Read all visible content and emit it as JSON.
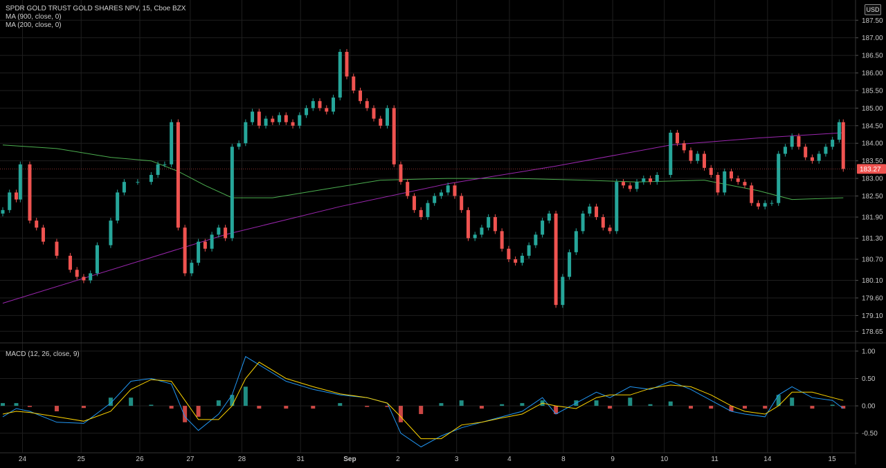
{
  "header": {
    "instrument": "SPDR GOLD TRUST GOLD SHARES NPV, 15, Cboe BZX",
    "indicator_ma900": "MA (900, close, 0)",
    "indicator_ma200": "MA (200, close, 0)",
    "indicator_macd": "MACD (12, 26, close, 9)",
    "currency": "USD"
  },
  "colors": {
    "background": "#000000",
    "grid": "#1f1f1f",
    "up": "#26a69a",
    "down": "#ef5350",
    "ma900": "#9c27b0",
    "ma200": "#4caf50",
    "macd_line": "#2196f3",
    "signal_line": "#ffd600",
    "hist_pos": "#26a69a",
    "hist_neg": "#ef5350",
    "axis_text": "#c8c8c8",
    "price_tag": "#ef5350"
  },
  "chart_data": {
    "type": "candlestick",
    "price_axis": {
      "ticks": [
        "187.50",
        "187.00",
        "186.50",
        "186.00",
        "185.50",
        "185.00",
        "184.50",
        "184.00",
        "183.50",
        "183.00",
        "182.50",
        "181.90",
        "181.30",
        "180.70",
        "180.10",
        "179.60",
        "179.10",
        "178.65"
      ],
      "last_price": "183.27",
      "ylim": [
        178.4,
        187.8
      ]
    },
    "macd_axis": {
      "ticks": [
        "1.00",
        "0.50",
        "0.00",
        "-0.50"
      ],
      "ylim": [
        -0.82,
        1.1
      ]
    },
    "x_ticks": [
      "24",
      "25",
      "26",
      "27",
      "28",
      "31",
      "Sep",
      "2",
      "3",
      "4",
      "8",
      "9",
      "10",
      "11",
      "14",
      "15"
    ],
    "price_series": [
      {
        "x": 0,
        "close": 182.1
      },
      {
        "x": 0.5,
        "close": 182.6
      },
      {
        "x": 1.0,
        "close": 182.4
      },
      {
        "x": 1.3,
        "close": 183.4
      },
      {
        "x": 2.0,
        "close": 181.8
      },
      {
        "x": 2.5,
        "close": 181.6
      },
      {
        "x": 3.0,
        "close": 181.2
      },
      {
        "x": 4.0,
        "close": 180.8
      },
      {
        "x": 5.0,
        "close": 180.4
      },
      {
        "x": 5.5,
        "close": 180.2
      },
      {
        "x": 6.0,
        "close": 180.1
      },
      {
        "x": 6.5,
        "close": 180.3
      },
      {
        "x": 7.0,
        "close": 181.1
      },
      {
        "x": 8.0,
        "close": 181.8
      },
      {
        "x": 8.5,
        "close": 182.6
      },
      {
        "x": 9.0,
        "close": 182.9
      },
      {
        "x": 10.0,
        "close": 182.9
      },
      {
        "x": 11.0,
        "close": 183.1
      },
      {
        "x": 11.5,
        "close": 183.4
      },
      {
        "x": 12.0,
        "close": 183.4
      },
      {
        "x": 12.5,
        "close": 184.6
      },
      {
        "x": 13.0,
        "close": 181.6
      },
      {
        "x": 13.5,
        "close": 180.3
      },
      {
        "x": 14.0,
        "close": 180.6
      },
      {
        "x": 14.5,
        "close": 181.2
      },
      {
        "x": 15.0,
        "close": 181.0
      },
      {
        "x": 15.5,
        "close": 181.4
      },
      {
        "x": 16.0,
        "close": 181.6
      },
      {
        "x": 16.5,
        "close": 181.3
      },
      {
        "x": 17.0,
        "close": 183.9
      },
      {
        "x": 17.5,
        "close": 184.0
      },
      {
        "x": 18.0,
        "close": 184.6
      },
      {
        "x": 18.5,
        "close": 184.9
      },
      {
        "x": 19.0,
        "close": 184.5
      },
      {
        "x": 19.5,
        "close": 184.7
      },
      {
        "x": 20.0,
        "close": 184.6
      },
      {
        "x": 20.5,
        "close": 184.8
      },
      {
        "x": 21.0,
        "close": 184.6
      },
      {
        "x": 21.5,
        "close": 184.5
      },
      {
        "x": 22.0,
        "close": 184.8
      },
      {
        "x": 22.5,
        "close": 185.0
      },
      {
        "x": 23.0,
        "close": 185.2
      },
      {
        "x": 23.5,
        "close": 185.0
      },
      {
        "x": 24.0,
        "close": 184.9
      },
      {
        "x": 24.5,
        "close": 185.3
      },
      {
        "x": 25.0,
        "close": 186.6
      },
      {
        "x": 25.5,
        "close": 185.9
      },
      {
        "x": 26.0,
        "close": 185.5
      },
      {
        "x": 26.5,
        "close": 185.2
      },
      {
        "x": 27.0,
        "close": 185.0
      },
      {
        "x": 27.5,
        "close": 184.7
      },
      {
        "x": 28.0,
        "close": 184.5
      },
      {
        "x": 28.5,
        "close": 185.0
      },
      {
        "x": 29.0,
        "close": 183.4
      },
      {
        "x": 29.5,
        "close": 182.9
      },
      {
        "x": 30.0,
        "close": 182.5
      },
      {
        "x": 30.5,
        "close": 182.1
      },
      {
        "x": 31.0,
        "close": 181.9
      },
      {
        "x": 31.5,
        "close": 182.3
      },
      {
        "x": 32.0,
        "close": 182.5
      },
      {
        "x": 32.5,
        "close": 182.6
      },
      {
        "x": 33.0,
        "close": 182.8
      },
      {
        "x": 33.5,
        "close": 182.5
      },
      {
        "x": 34.0,
        "close": 182.1
      },
      {
        "x": 34.5,
        "close": 181.3
      },
      {
        "x": 35.0,
        "close": 181.4
      },
      {
        "x": 35.5,
        "close": 181.6
      },
      {
        "x": 36.0,
        "close": 181.9
      },
      {
        "x": 36.5,
        "close": 181.5
      },
      {
        "x": 37.0,
        "close": 181.0
      },
      {
        "x": 37.5,
        "close": 180.7
      },
      {
        "x": 38.0,
        "close": 180.6
      },
      {
        "x": 38.5,
        "close": 180.8
      },
      {
        "x": 39.0,
        "close": 181.1
      },
      {
        "x": 39.5,
        "close": 181.4
      },
      {
        "x": 40.0,
        "close": 181.8
      },
      {
        "x": 40.5,
        "close": 182.0
      },
      {
        "x": 41.0,
        "close": 179.4
      },
      {
        "x": 41.5,
        "close": 180.2
      },
      {
        "x": 42.0,
        "close": 180.9
      },
      {
        "x": 42.5,
        "close": 181.5
      },
      {
        "x": 43.0,
        "close": 182.0
      },
      {
        "x": 43.5,
        "close": 182.2
      },
      {
        "x": 44.0,
        "close": 181.9
      },
      {
        "x": 44.5,
        "close": 181.6
      },
      {
        "x": 45.0,
        "close": 181.5
      },
      {
        "x": 45.5,
        "close": 182.9
      },
      {
        "x": 46.0,
        "close": 182.8
      },
      {
        "x": 46.5,
        "close": 182.7
      },
      {
        "x": 47.0,
        "close": 182.9
      },
      {
        "x": 47.5,
        "close": 183.0
      },
      {
        "x": 48.0,
        "close": 182.9
      },
      {
        "x": 48.5,
        "close": 183.1
      },
      {
        "x": 49.5,
        "close": 184.3
      },
      {
        "x": 50.0,
        "close": 184.0
      },
      {
        "x": 50.5,
        "close": 183.8
      },
      {
        "x": 51.0,
        "close": 183.5
      },
      {
        "x": 51.5,
        "close": 183.7
      },
      {
        "x": 52.0,
        "close": 183.3
      },
      {
        "x": 52.5,
        "close": 183.1
      },
      {
        "x": 53.0,
        "close": 182.6
      },
      {
        "x": 53.5,
        "close": 183.2
      },
      {
        "x": 54.0,
        "close": 183.0
      },
      {
        "x": 54.5,
        "close": 182.9
      },
      {
        "x": 55.0,
        "close": 182.8
      },
      {
        "x": 55.5,
        "close": 182.3
      },
      {
        "x": 56.0,
        "close": 182.2
      },
      {
        "x": 56.5,
        "close": 182.3
      },
      {
        "x": 57.0,
        "close": 182.3
      },
      {
        "x": 57.5,
        "close": 183.7
      },
      {
        "x": 58.0,
        "close": 183.9
      },
      {
        "x": 58.5,
        "close": 184.2
      },
      {
        "x": 59.0,
        "close": 183.9
      },
      {
        "x": 59.5,
        "close": 183.6
      },
      {
        "x": 60.0,
        "close": 183.5
      },
      {
        "x": 60.5,
        "close": 183.7
      },
      {
        "x": 61.0,
        "close": 183.9
      },
      {
        "x": 61.5,
        "close": 184.1
      },
      {
        "x": 62.0,
        "close": 184.6
      },
      {
        "x": 62.3,
        "close": 183.27
      }
    ],
    "ma900": [
      [
        0,
        179.45
      ],
      [
        16.5,
        181.4
      ],
      [
        25.0,
        182.2
      ],
      [
        33.0,
        182.85
      ],
      [
        41.0,
        183.35
      ],
      [
        49.5,
        183.95
      ],
      [
        56.0,
        184.15
      ],
      [
        62.3,
        184.3
      ]
    ],
    "ma200": [
      [
        0,
        183.95
      ],
      [
        4.0,
        183.85
      ],
      [
        8.0,
        183.6
      ],
      [
        11.0,
        183.5
      ],
      [
        13.0,
        183.2
      ],
      [
        15.0,
        182.8
      ],
      [
        17.0,
        182.45
      ],
      [
        20.0,
        182.45
      ],
      [
        24.0,
        182.7
      ],
      [
        28.0,
        182.95
      ],
      [
        33.0,
        183.0
      ],
      [
        38.0,
        183.0
      ],
      [
        43.0,
        182.95
      ],
      [
        47.0,
        182.9
      ],
      [
        52.0,
        182.95
      ],
      [
        56.0,
        182.65
      ],
      [
        58.5,
        182.4
      ],
      [
        62.3,
        182.45
      ]
    ],
    "macd_series": [
      {
        "x": 0,
        "macd": -0.2,
        "signal": -0.15,
        "hist": 0.05
      },
      {
        "x": 1.0,
        "macd": -0.05,
        "signal": -0.1,
        "hist": 0.05
      },
      {
        "x": 2.0,
        "macd": -0.1,
        "signal": -0.12,
        "hist": -0.02
      },
      {
        "x": 4.0,
        "macd": -0.3,
        "signal": -0.2,
        "hist": -0.1
      },
      {
        "x": 6.0,
        "macd": -0.32,
        "signal": -0.28,
        "hist": -0.04
      },
      {
        "x": 8.0,
        "macd": 0.05,
        "signal": -0.1,
        "hist": 0.15
      },
      {
        "x": 9.5,
        "macd": 0.45,
        "signal": 0.3,
        "hist": 0.15
      },
      {
        "x": 11.0,
        "macd": 0.5,
        "signal": 0.48,
        "hist": 0.02
      },
      {
        "x": 12.5,
        "macd": 0.4,
        "signal": 0.45,
        "hist": -0.05
      },
      {
        "x": 13.5,
        "macd": -0.2,
        "signal": 0.1,
        "hist": -0.3
      },
      {
        "x": 14.5,
        "macd": -0.45,
        "signal": -0.25,
        "hist": -0.2
      },
      {
        "x": 16.0,
        "macd": -0.15,
        "signal": -0.25,
        "hist": 0.1
      },
      {
        "x": 17.0,
        "macd": 0.2,
        "signal": 0.0,
        "hist": 0.2
      },
      {
        "x": 18.0,
        "macd": 0.9,
        "signal": 0.5,
        "hist": 0.35
      },
      {
        "x": 19.0,
        "macd": 0.75,
        "signal": 0.8,
        "hist": -0.05
      },
      {
        "x": 21.0,
        "macd": 0.45,
        "signal": 0.5,
        "hist": -0.05
      },
      {
        "x": 23.0,
        "macd": 0.3,
        "signal": 0.35,
        "hist": -0.05
      },
      {
        "x": 25.0,
        "macd": 0.2,
        "signal": 0.22,
        "hist": 0.05
      },
      {
        "x": 27.0,
        "macd": 0.15,
        "signal": 0.15,
        "hist": -0.02
      },
      {
        "x": 28.5,
        "macd": 0.05,
        "signal": 0.05,
        "hist": -0.02
      },
      {
        "x": 29.5,
        "macd": -0.5,
        "signal": -0.2,
        "hist": -0.3
      },
      {
        "x": 31.0,
        "macd": -0.75,
        "signal": -0.6,
        "hist": -0.15
      },
      {
        "x": 32.5,
        "macd": -0.55,
        "signal": -0.6,
        "hist": 0.05
      },
      {
        "x": 34.0,
        "macd": -0.4,
        "signal": -0.35,
        "hist": 0.1
      },
      {
        "x": 35.5,
        "macd": -0.3,
        "signal": -0.3,
        "hist": -0.05
      },
      {
        "x": 37.0,
        "macd": -0.2,
        "signal": -0.22,
        "hist": 0.03
      },
      {
        "x": 38.5,
        "macd": -0.1,
        "signal": -0.15,
        "hist": 0.05
      },
      {
        "x": 40.0,
        "macd": 0.15,
        "signal": 0.05,
        "hist": 0.1
      },
      {
        "x": 41.0,
        "macd": -0.15,
        "signal": 0.0,
        "hist": -0.15
      },
      {
        "x": 42.5,
        "macd": 0.05,
        "signal": -0.05,
        "hist": 0.1
      },
      {
        "x": 44.0,
        "macd": 0.25,
        "signal": 0.15,
        "hist": 0.1
      },
      {
        "x": 45.0,
        "macd": 0.15,
        "signal": 0.2,
        "hist": -0.05
      },
      {
        "x": 46.5,
        "macd": 0.35,
        "signal": 0.2,
        "hist": 0.15
      },
      {
        "x": 48.0,
        "macd": 0.3,
        "signal": 0.32,
        "hist": 0.03
      },
      {
        "x": 49.5,
        "macd": 0.45,
        "signal": 0.38,
        "hist": 0.08
      },
      {
        "x": 51.0,
        "macd": 0.3,
        "signal": 0.35,
        "hist": -0.05
      },
      {
        "x": 52.5,
        "macd": 0.1,
        "signal": 0.2,
        "hist": -0.05
      },
      {
        "x": 54.0,
        "macd": -0.1,
        "signal": 0.0,
        "hist": -0.1
      },
      {
        "x": 55.0,
        "macd": -0.15,
        "signal": -0.1,
        "hist": -0.05
      },
      {
        "x": 56.5,
        "macd": -0.2,
        "signal": -0.15,
        "hist": -0.05
      },
      {
        "x": 57.5,
        "macd": 0.2,
        "signal": 0.0,
        "hist": 0.2
      },
      {
        "x": 58.5,
        "macd": 0.35,
        "signal": 0.25,
        "hist": 0.15
      },
      {
        "x": 60.0,
        "macd": 0.15,
        "signal": 0.25,
        "hist": -0.05
      },
      {
        "x": 61.5,
        "macd": 0.1,
        "signal": 0.15,
        "hist": 0.02
      },
      {
        "x": 62.3,
        "macd": -0.05,
        "signal": 0.1,
        "hist": -0.05
      }
    ]
  }
}
